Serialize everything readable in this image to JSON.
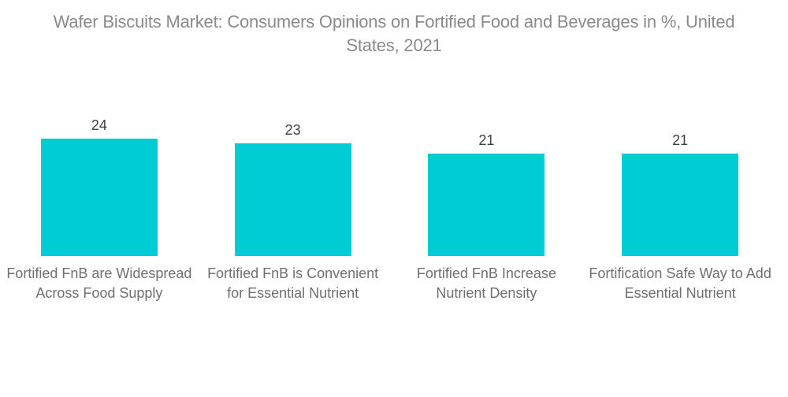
{
  "title": "Wafer Biscuits Market: Consumers Opinions on Fortified Food and Beverages in %, United States, 2021",
  "chart_data": {
    "type": "bar",
    "title": "Wafer Biscuits Market: Consumers Opinions on Fortified Food and Beverages in %, United States, 2021",
    "categories": [
      "Fortified FnB are Widespread Across Food Supply",
      "Fortified FnB is Convenient for Essential Nutrient",
      "Fortified FnB Increase Nutrient Density",
      "Fortification Safe Way to Add Essential Nutrient"
    ],
    "values": [
      24,
      23,
      21,
      21
    ],
    "value_labels": [
      "24",
      "23",
      "21",
      "21"
    ],
    "xlabel": "",
    "ylabel": "",
    "ylim": [
      0,
      30
    ],
    "grid": false,
    "legend": "none",
    "bar_color": "#00ccd4",
    "title_color": "#8a8a8a",
    "value_label_color": "#414141",
    "category_label_color": "#6f6f6f",
    "background_color": "#ffffff"
  }
}
